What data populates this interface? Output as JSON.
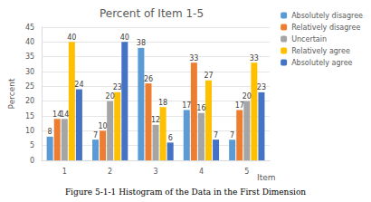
{
  "chart_data": {
    "type": "bar",
    "title": "Percent of Item 1-5",
    "caption": "Figure 5-1-1 Histogram of the Data in the First Dimension",
    "x_label": "Item",
    "y_label": "Percent",
    "categories": [
      "1",
      "2",
      "3",
      "4",
      "5"
    ],
    "series": [
      {
        "name": "Absolutely disagree",
        "color": "#5b9bd5",
        "values": [
          8,
          7,
          38,
          17,
          7
        ]
      },
      {
        "name": "Relatively disagree",
        "color": "#ed7d31",
        "values": [
          14,
          10,
          26,
          33,
          17
        ]
      },
      {
        "name": "Uncertain",
        "color": "#a5a5a5",
        "values": [
          14,
          20,
          12,
          16,
          20
        ]
      },
      {
        "name": "Relatively agree",
        "color": "#ffc000",
        "values": [
          40,
          23,
          18,
          27,
          33
        ]
      },
      {
        "name": "Absolutely agree",
        "color": "#4472c4",
        "values": [
          24,
          40,
          6,
          7,
          23
        ]
      }
    ],
    "ylim": [
      0,
      45
    ],
    "yticks": [
      0,
      5,
      10,
      15,
      20,
      25,
      30,
      35,
      40,
      45
    ],
    "grid": true,
    "legend": "right",
    "data_labels": true
  }
}
